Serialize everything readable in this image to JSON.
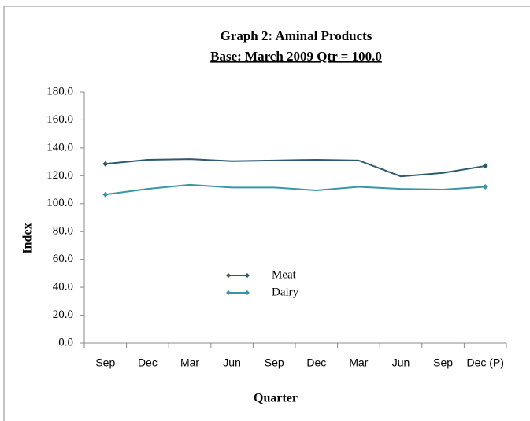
{
  "chart_data": {
    "type": "line",
    "title": "Graph 2: Aminal Products",
    "subtitle": "Base: March  2009 Qtr  = 100.0",
    "x_label": "Quarter",
    "y_label": "Index",
    "categories": [
      "Sep",
      "Dec",
      "Mar",
      "Jun",
      "Sep",
      "Dec",
      "Mar",
      "Jun",
      "Sep",
      "Dec (P)"
    ],
    "series": [
      {
        "name": "Meat",
        "color": "#2e5a6e",
        "values": [
          128.5,
          131.5,
          132,
          130.5,
          131,
          131.5,
          131,
          119.5,
          122,
          127
        ]
      },
      {
        "name": "Dairy",
        "color": "#3a96a6",
        "values": [
          106.5,
          110.5,
          113.5,
          111.5,
          111.5,
          109.5,
          112,
          110.5,
          110,
          112
        ]
      }
    ],
    "ylim": [
      0,
      180
    ],
    "yticks": [
      {
        "value": 0,
        "label": "0.0"
      },
      {
        "value": 20,
        "label": "20.0"
      },
      {
        "value": 40,
        "label": "40.0"
      },
      {
        "value": 60,
        "label": "60.0"
      },
      {
        "value": 80,
        "label": "80.0"
      },
      {
        "value": 100,
        "label": "100.0"
      },
      {
        "value": 120,
        "label": "120.0"
      },
      {
        "value": 140,
        "label": "140.0"
      },
      {
        "value": 160,
        "label": "160.0"
      },
      {
        "value": 180,
        "label": "180.0"
      }
    ],
    "grid": false
  }
}
